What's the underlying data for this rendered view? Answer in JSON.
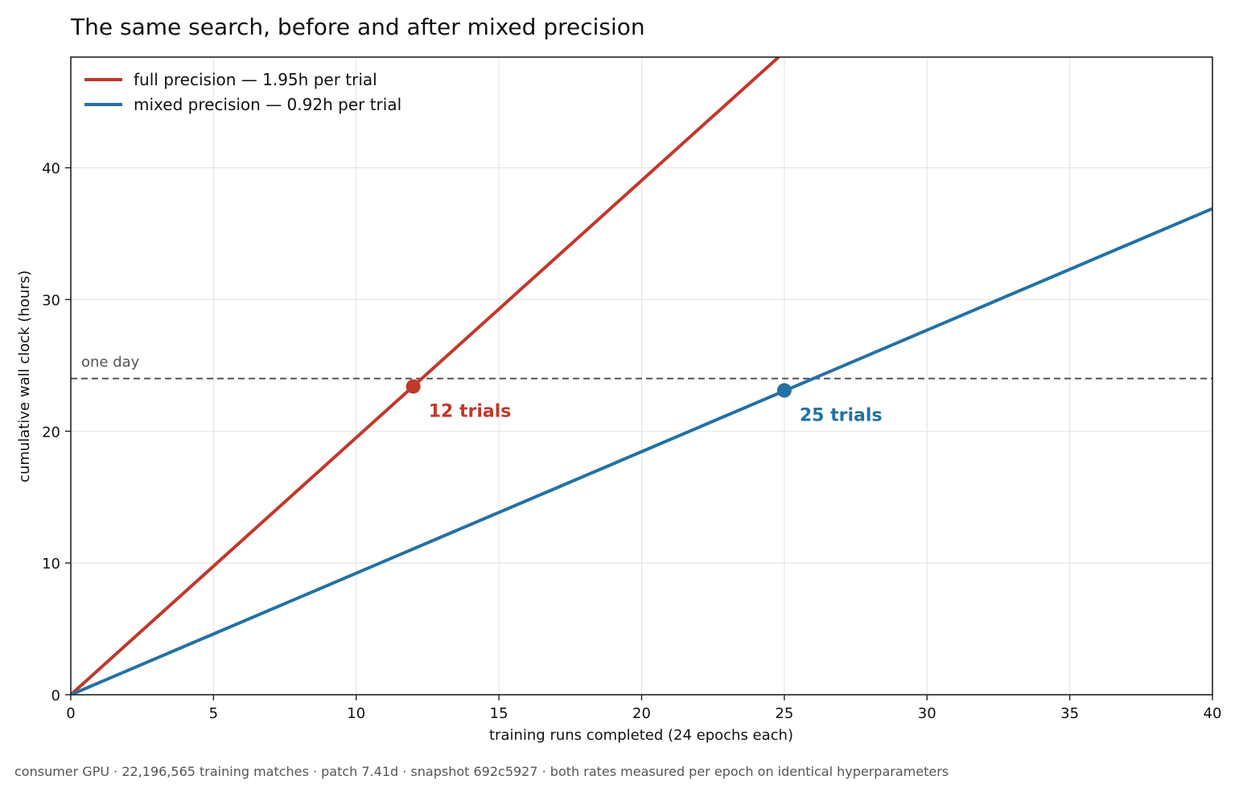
{
  "chart_data": {
    "type": "line",
    "title": "The same search, before and after mixed precision",
    "xlabel": "training runs completed (24 epochs each)",
    "ylabel": "cumulative wall clock (hours)",
    "xlim": [
      0,
      40
    ],
    "ylim": [
      0,
      48.4
    ],
    "x_ticks": [
      0,
      5,
      10,
      15,
      20,
      25,
      30,
      35,
      40
    ],
    "y_ticks": [
      0,
      10,
      20,
      30,
      40
    ],
    "grid": true,
    "legend_position": "top-left",
    "series": [
      {
        "name": "full precision — 1.95h per trial",
        "color": "#c0392b",
        "x": [
          0,
          24.8
        ],
        "y": [
          0,
          48.4
        ],
        "marker": {
          "x": 12,
          "y": 23.4
        },
        "annotation": "12 trials"
      },
      {
        "name": "mixed precision — 0.92h per trial",
        "color": "#2471a3",
        "x": [
          0,
          40
        ],
        "y": [
          0,
          36.9
        ],
        "marker": {
          "x": 25,
          "y": 23.1
        },
        "annotation": "25 trials"
      }
    ],
    "reference_line": {
      "y": 24,
      "label": "one day",
      "color": "#555555",
      "style": "dashed"
    }
  },
  "footer": "consumer GPU · 22,196,565 training matches · patch 7.41d · snapshot 692c5927 · both rates measured per epoch on identical hyperparameters"
}
